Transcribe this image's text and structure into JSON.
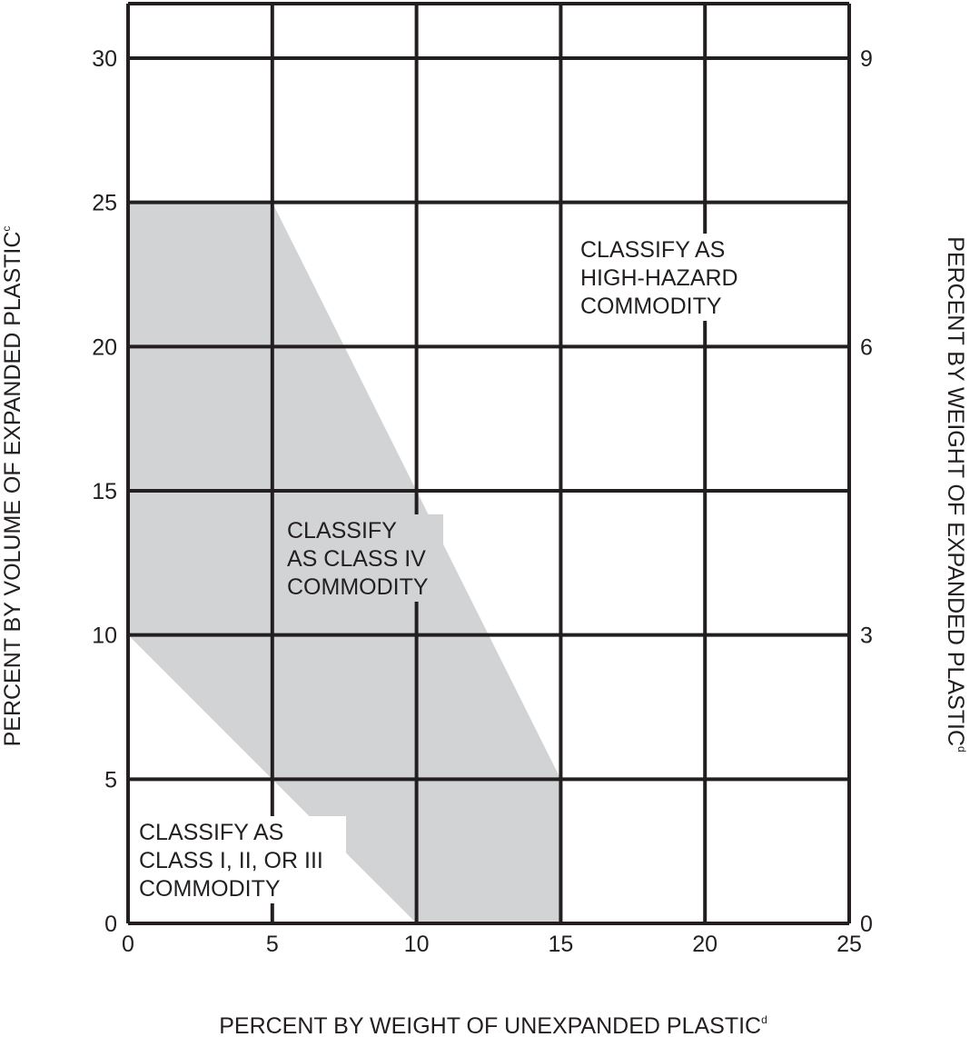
{
  "chart_data": {
    "type": "area",
    "xlabel": "PERCENT BY WEIGHT OF UNEXPANDED PLASTIC",
    "xlabel_superscript": "d",
    "ylabel_left": "PERCENT BY VOLUME OF EXPANDED PLASTIC",
    "ylabel_left_superscript": "c",
    "ylabel_right": "PERCENT BY WEIGHT OF EXPANDED PLASTIC",
    "ylabel_right_superscript": "d",
    "xlim": [
      0,
      25
    ],
    "ylim": [
      0,
      30
    ],
    "x_ticks": [
      "0",
      "5",
      "10",
      "15",
      "20",
      "25"
    ],
    "y_ticks_left": [
      "0",
      "5",
      "10",
      "15",
      "20",
      "25",
      "30"
    ],
    "y_ticks_right": [
      "0",
      "3",
      "6",
      "9"
    ],
    "y_right_scale": {
      "0": 0,
      "3": 10,
      "6": 20,
      "9": 30
    },
    "grid": true,
    "shaded_color": "#d1d3d4",
    "grid_color": "#231f20",
    "regions": [
      {
        "name": "class-iv",
        "lines": [
          "CLASSIFY",
          "AS CLASS IV",
          "COMMODITY"
        ],
        "shaded": true,
        "polygon": [
          [
            0,
            25
          ],
          [
            5,
            25
          ],
          [
            15,
            5
          ],
          [
            15,
            0
          ],
          [
            10,
            0
          ],
          [
            0,
            10
          ]
        ]
      },
      {
        "name": "class-i-ii-iii",
        "lines": [
          "CLASSIFY AS",
          "CLASS I, II, OR III",
          "COMMODITY"
        ],
        "shaded": false,
        "boundary": [
          [
            0,
            10
          ],
          [
            10,
            0
          ]
        ]
      },
      {
        "name": "high-hazard",
        "lines": [
          "CLASSIFY AS",
          "HIGH-HAZARD",
          "COMMODITY"
        ],
        "shaded": false,
        "boundary": [
          [
            5,
            25
          ],
          [
            15,
            5
          ],
          [
            15,
            0
          ]
        ]
      }
    ]
  }
}
